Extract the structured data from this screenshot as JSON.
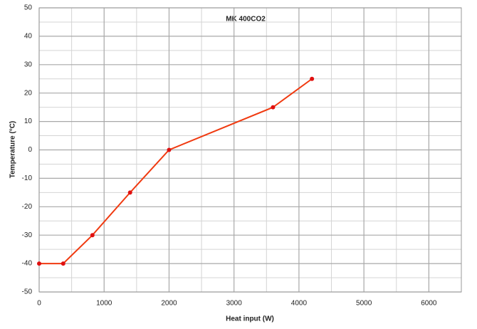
{
  "chart_data": {
    "type": "line",
    "title": "MK 400CO2",
    "x_label": "Heat input (W)",
    "y_label": "Temperature (°C)",
    "series": [
      {
        "name": "MK 400CO2",
        "color": "#f03a10",
        "x": [
          0,
          370,
          820,
          1400,
          2000,
          3600,
          4200
        ],
        "values": [
          -40,
          -40,
          -30,
          -15,
          0,
          15,
          25
        ]
      }
    ],
    "xlim": [
      0,
      6500
    ],
    "xticks": [
      0,
      1000,
      2000,
      3000,
      4000,
      5000,
      6000
    ],
    "x_minor_ticks": [
      500,
      1500,
      2500,
      3500,
      4500,
      5500,
      6500
    ],
    "ylim": [
      -50,
      50
    ],
    "yticks": [
      -50,
      -40,
      -30,
      -20,
      -10,
      0,
      10,
      20,
      30,
      40,
      50
    ],
    "y_minor_ticks": [
      -45,
      -35,
      -25,
      -15,
      -5,
      5,
      15,
      25,
      35,
      45
    ],
    "grid": true
  }
}
